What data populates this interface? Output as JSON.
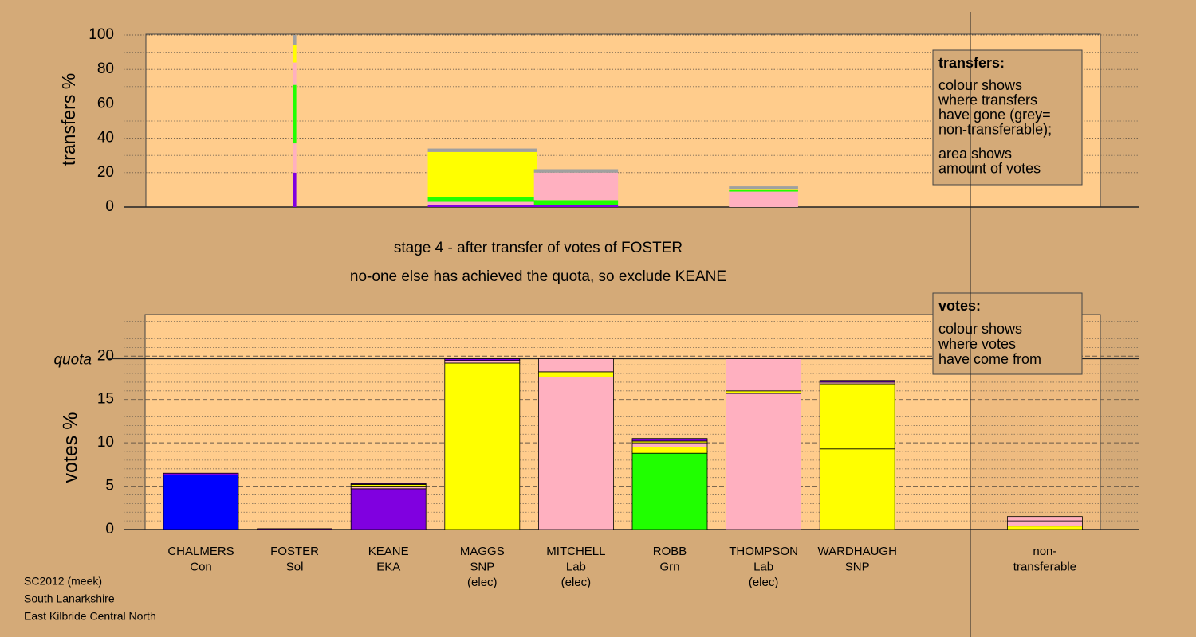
{
  "chart_data": [
    {
      "type": "transfer-bars",
      "ylabel": "transfers %",
      "ylim": [
        0,
        100
      ],
      "yticks": [
        0,
        20,
        40,
        60,
        80,
        100
      ],
      "minor_yticks": [
        10,
        30,
        50,
        70,
        90
      ],
      "bars": [
        null,
        {
          "votes": 0.1,
          "segments": [
            {
              "color": "#8000e0",
              "value": 20
            },
            {
              "color": "#ffb0c0",
              "value": 17
            },
            {
              "color": "#20ff00",
              "value": 34
            },
            {
              "color": "#ffb0c0",
              "value": 13
            },
            {
              "color": "#ffff00",
              "value": 10
            },
            {
              "color": "#a0a0a0",
              "value": 6
            }
          ]
        },
        null,
        {
          "votes": 1.16,
          "segments": [
            {
              "color": "#8000e0",
              "value": 1
            },
            {
              "color": "#ffb0c0",
              "value": 2
            },
            {
              "color": "#20ff00",
              "value": 3
            },
            {
              "color": "#ffff00",
              "value": 26
            },
            {
              "color": "#a0a0a0",
              "value": 2
            }
          ]
        },
        {
          "votes": 0.58,
          "segments": [
            {
              "color": "#8000e0",
              "value": 1
            },
            {
              "color": "#20ff00",
              "value": 3
            },
            {
              "color": "#ffb0c0",
              "value": 16
            },
            {
              "color": "#a0a0a0",
              "value": 2
            }
          ]
        },
        null,
        {
          "votes": 0.26,
          "segments": [
            {
              "color": "#ffb0c0",
              "value": 9
            },
            {
              "color": "#20ff00",
              "value": 1
            },
            {
              "color": "#ffff00",
              "value": 0.5
            },
            {
              "color": "#a0a0a0",
              "value": 1.5
            }
          ]
        },
        null,
        null,
        null
      ]
    },
    {
      "type": "vote-bars",
      "ylabel": "votes %",
      "ylim": [
        0,
        24.8
      ],
      "yticks": [
        0,
        5,
        10,
        15,
        20
      ],
      "minor_yticks": [
        1,
        2,
        3,
        4,
        6,
        7,
        8,
        9,
        11,
        12,
        13,
        14,
        16,
        17,
        18,
        19,
        21,
        22,
        23,
        24
      ],
      "quota": 19.7,
      "quota_label": "quota",
      "categories": [
        [
          "CHALMERS",
          "Con"
        ],
        [
          "FOSTER",
          "Sol"
        ],
        [
          "KEANE",
          "EKA"
        ],
        [
          "MAGGS",
          "SNP",
          "(elec)"
        ],
        [
          "MITCHELL",
          "Lab",
          "(elec)"
        ],
        [
          "ROBB",
          "Grn"
        ],
        [
          "THOMPSON",
          "Lab",
          "(elec)"
        ],
        [
          "WARDHAUGH",
          "SNP"
        ],
        null,
        [
          "non-",
          "transferable"
        ]
      ],
      "bars": [
        {
          "segments": [
            {
              "color": "#0000ff",
              "value": 6.3
            },
            {
              "color": "#8000e0",
              "value": 0.2
            }
          ]
        },
        {
          "segments": [
            {
              "color": "#8000e0",
              "value": 0.1
            }
          ]
        },
        {
          "segments": [
            {
              "color": "#8000e0",
              "value": 4.7
            },
            {
              "color": "#ffb0c0",
              "value": 0.3
            },
            {
              "color": "#ffff00",
              "value": 0.2
            },
            {
              "color": "#8000e0",
              "value": 0.1
            }
          ]
        },
        {
          "segments": [
            {
              "color": "#ffff00",
              "value": 19.2
            },
            {
              "color": "#ffb0c0",
              "value": 0.3
            },
            {
              "color": "#8000e0",
              "value": 0.2
            }
          ]
        },
        {
          "segments": [
            {
              "color": "#ffb0c0",
              "value": 17.6
            },
            {
              "color": "#ffff00",
              "value": 0.6
            },
            {
              "color": "#ffb0c0",
              "value": 1.5
            }
          ]
        },
        {
          "segments": [
            {
              "color": "#20ff00",
              "value": 8.8
            },
            {
              "color": "#ffff00",
              "value": 0.7
            },
            {
              "color": "#ffb0c0",
              "value": 0.5
            },
            {
              "color": "#ffff00",
              "value": 0.2
            },
            {
              "color": "#8000e0",
              "value": 0.3
            }
          ]
        },
        {
          "segments": [
            {
              "color": "#ffb0c0",
              "value": 15.7
            },
            {
              "color": "#ffff00",
              "value": 0.3
            },
            {
              "color": "#ffb0c0",
              "value": 3.7
            }
          ]
        },
        {
          "segments": [
            {
              "color": "#ffff00",
              "value": 9.3
            },
            {
              "color": "#ffff00",
              "value": 7.5
            },
            {
              "color": "#ffb0c0",
              "value": 0.2
            },
            {
              "color": "#8000e0",
              "value": 0.2
            }
          ]
        },
        null,
        {
          "segments": [
            {
              "color": "#ffff00",
              "value": 0.4
            },
            {
              "color": "#ffb0c0",
              "value": 0.6
            },
            {
              "color": "#ffb0c0",
              "value": 0.5
            }
          ]
        }
      ]
    }
  ],
  "stage": "stage 4 - after transfer of votes of FOSTER",
  "note": "no-one else has achieved the quota, so exclude KEANE",
  "transfers_legend": {
    "title": "transfers:",
    "para1": [
      "colour shows",
      "where transfers",
      "have gone (grey=",
      "non-transferable);"
    ],
    "para2": [
      "area shows",
      "amount of votes"
    ]
  },
  "votes_legend": {
    "title": "votes:",
    "lines": [
      "colour shows",
      "where votes",
      "have come from"
    ]
  },
  "footer": [
    "SC2012 (meek)",
    "South Lanarkshire",
    "East Kilbride Central North"
  ]
}
